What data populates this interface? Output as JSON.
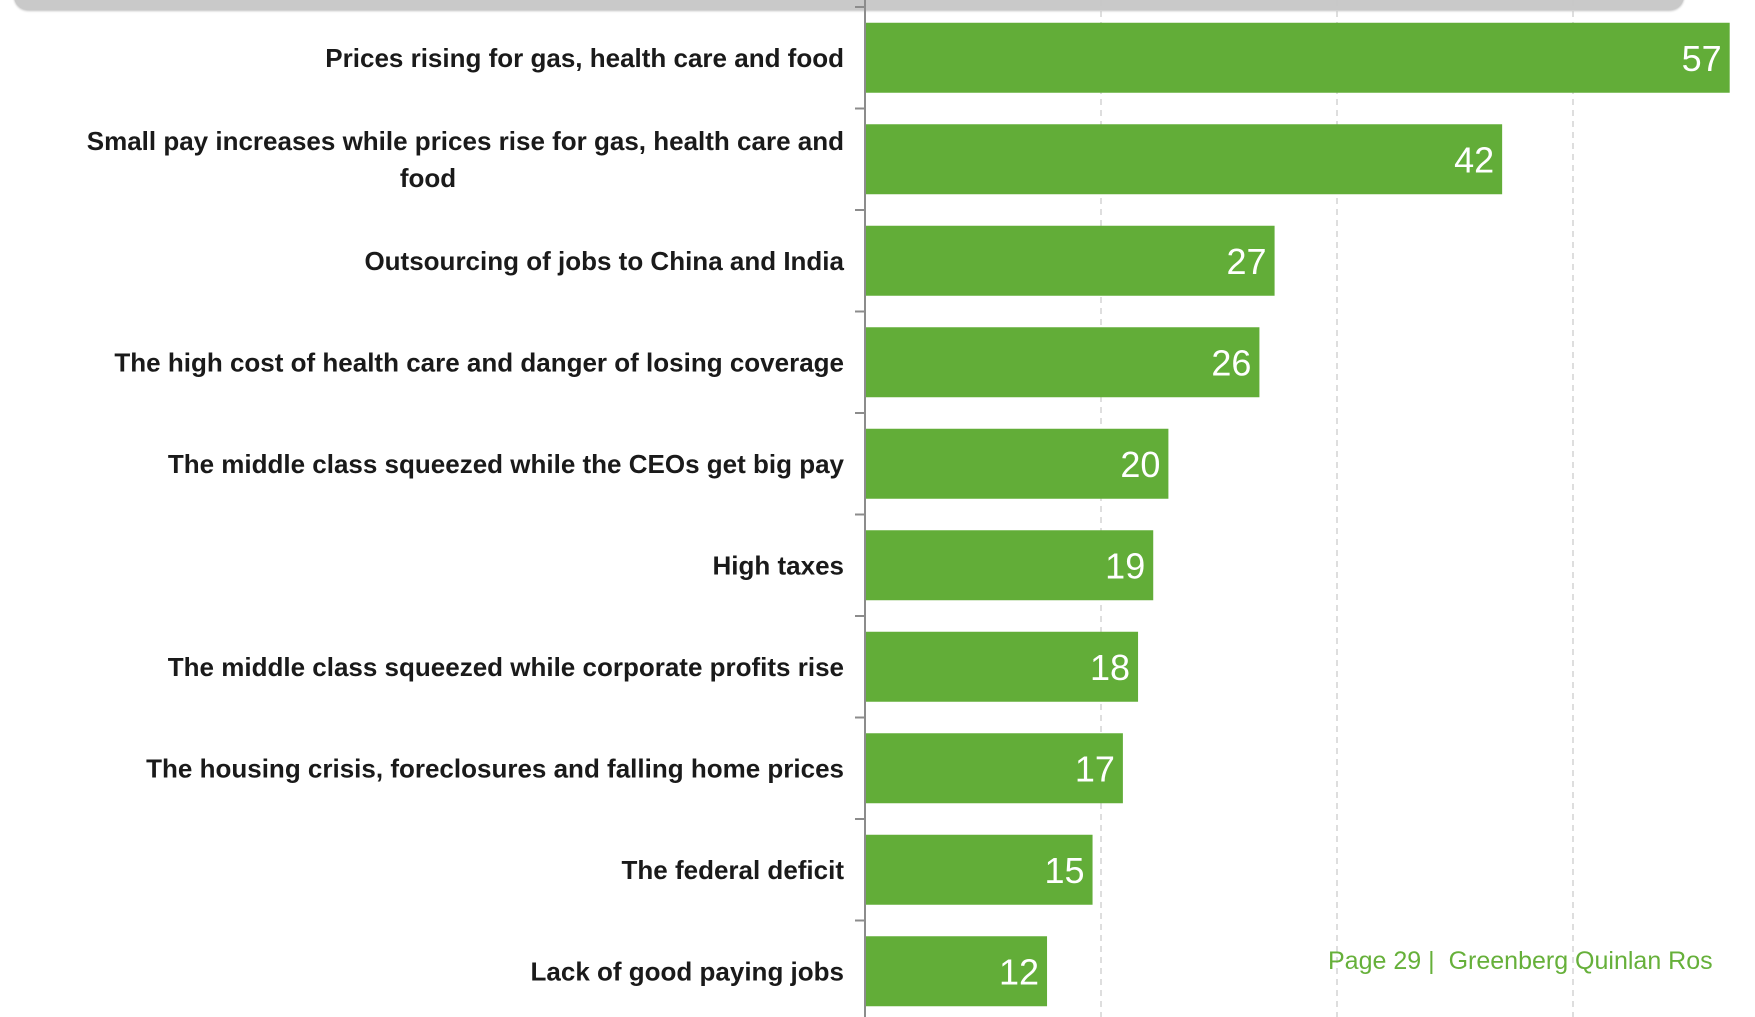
{
  "header": {
    "banner_text": ""
  },
  "footer": {
    "page_label": "Page 29 |",
    "organization": "Greenberg Quinlan Ros"
  },
  "colors": {
    "bar": "#62ad38",
    "value_label": "#ffffff",
    "category_label": "#1a1a1a",
    "axis": "#8c8c8c",
    "grid": "#c8c8c8",
    "footer_text": "#66b03a",
    "banner": "#c9c9c9"
  },
  "chart_data": {
    "type": "bar",
    "orientation": "horizontal",
    "categories": [
      [
        "Prices rising for gas, health care and food"
      ],
      [
        "Small pay increases while prices rise for gas, health care and",
        "food"
      ],
      [
        "Outsourcing of jobs to China and India"
      ],
      [
        "The high cost of health care and danger of losing coverage"
      ],
      [
        "The middle class squeezed while the CEOs get big pay"
      ],
      [
        "High taxes"
      ],
      [
        "The middle class squeezed while corporate profits rise"
      ],
      [
        "The housing crisis, foreclosures and falling home prices"
      ],
      [
        "The federal deficit"
      ],
      [
        "Lack of good paying jobs"
      ]
    ],
    "values": [
      57,
      42,
      27,
      26,
      20,
      19,
      18,
      17,
      15,
      12
    ],
    "xlim": [
      0,
      57
    ],
    "grid": "vertical dashed",
    "value_labels": "inside bar end",
    "legend": "none"
  }
}
